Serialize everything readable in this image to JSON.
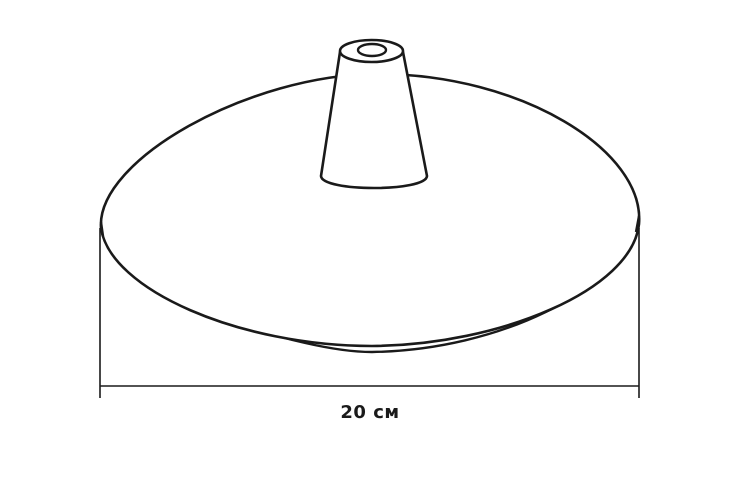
{
  "dimension": {
    "label": "20 см"
  },
  "colors": {
    "stroke": "#1a1a1a",
    "fill": "#ffffff"
  }
}
